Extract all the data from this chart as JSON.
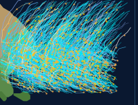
{
  "background_color": "#0a1428",
  "figsize": [
    2.0,
    1.53
  ],
  "dpi": 100,
  "lon_min": 100,
  "lon_max": 182,
  "lat_min": -2,
  "lat_max": 52,
  "num_tracks": 700,
  "seed": 7,
  "cat_colors": [
    "#00ffff",
    "#00eeff",
    "#00ddee",
    "#22ddff",
    "#44ccff",
    "#66bbff",
    "#88aaee",
    "#ffffff",
    "#ffffaa",
    "#ffdd44",
    "#ffaa00",
    "#ff7700"
  ],
  "cat_weights": [
    0.18,
    0.15,
    0.13,
    0.12,
    0.1,
    0.08,
    0.07,
    0.06,
    0.04,
    0.03,
    0.02,
    0.02
  ],
  "land_patches": [
    {
      "lons": [
        100,
        104,
        108,
        111,
        114,
        117,
        120,
        122,
        122,
        120,
        118,
        116,
        114,
        111,
        108,
        105,
        102,
        100,
        100
      ],
      "lats": [
        20,
        19,
        18,
        18,
        20,
        22,
        24,
        26,
        28,
        32,
        35,
        37,
        39,
        41,
        43,
        45,
        47,
        50,
        20
      ],
      "color": "#c8a878"
    },
    {
      "lons": [
        100,
        101,
        102,
        103,
        104,
        105,
        106,
        107,
        108,
        108,
        107,
        105,
        103,
        101,
        100,
        100
      ],
      "lats": [
        18,
        18,
        17,
        16,
        14,
        12,
        10,
        8,
        6,
        4,
        3,
        2,
        2,
        3,
        5,
        18
      ],
      "color": "#5a8a4a"
    },
    {
      "lons": [
        100,
        101,
        102,
        103,
        104,
        104,
        103,
        102,
        101,
        100,
        100
      ],
      "lats": [
        5,
        5,
        4,
        3,
        2,
        1,
        0,
        0,
        1,
        2,
        5
      ],
      "color": "#4a7a3a"
    },
    {
      "lons": [
        108,
        110,
        112,
        114,
        116,
        117,
        118,
        118,
        116,
        114,
        112,
        110,
        108,
        108
      ],
      "lats": [
        4,
        4,
        4,
        5,
        5,
        4,
        3,
        1,
        0,
        0,
        1,
        2,
        3,
        4
      ],
      "color": "#4a7a3a"
    },
    {
      "lons": [
        117,
        118,
        119,
        120,
        121,
        122,
        123,
        122,
        121,
        120,
        119,
        118,
        117,
        117
      ],
      "lats": [
        22,
        22,
        22,
        22,
        22,
        23,
        24,
        25,
        26,
        26,
        25,
        24,
        23,
        22
      ],
      "color": "#5a8a4a"
    },
    {
      "lons": [
        119,
        120,
        121,
        122,
        123,
        124,
        125,
        126,
        126,
        125,
        124,
        122,
        120,
        119,
        119
      ],
      "lats": [
        16,
        15,
        14,
        12,
        10,
        8,
        7,
        7,
        9,
        11,
        13,
        15,
        17,
        18,
        16
      ],
      "color": "#5a8a4a"
    },
    {
      "lons": [
        128,
        129,
        130,
        131,
        132,
        133,
        134,
        135,
        136,
        137,
        138,
        139,
        140,
        141,
        142,
        141,
        140,
        139,
        138,
        136,
        134,
        132,
        130,
        129,
        128
      ],
      "lats": [
        31,
        30,
        30,
        31,
        32,
        33,
        34,
        35,
        35,
        35,
        36,
        37,
        38,
        39,
        40,
        41,
        42,
        41,
        40,
        38,
        36,
        34,
        32,
        31,
        31
      ],
      "color": "#6a9a5a"
    },
    {
      "lons": [
        140,
        141,
        142,
        143,
        144,
        145,
        145,
        144,
        143,
        142,
        141,
        140,
        140
      ],
      "lats": [
        41,
        41,
        42,
        43,
        43,
        44,
        45,
        45,
        44,
        43,
        42,
        41,
        41
      ],
      "color": "#6a9a5a"
    },
    {
      "lons": [
        130,
        131,
        132,
        133,
        134,
        134,
        133,
        132,
        131,
        130,
        130
      ],
      "lats": [
        31,
        30,
        30,
        31,
        32,
        33,
        33,
        32,
        31,
        30,
        31
      ],
      "color": "#6a9a5a"
    },
    {
      "lons": [
        100,
        102,
        104,
        106,
        108,
        109,
        110,
        110,
        108,
        106,
        104,
        102,
        100,
        100
      ],
      "lats": [
        20,
        20,
        21,
        22,
        22,
        21,
        20,
        18,
        16,
        14,
        13,
        14,
        16,
        20
      ],
      "color": "#6aaa5a"
    }
  ]
}
